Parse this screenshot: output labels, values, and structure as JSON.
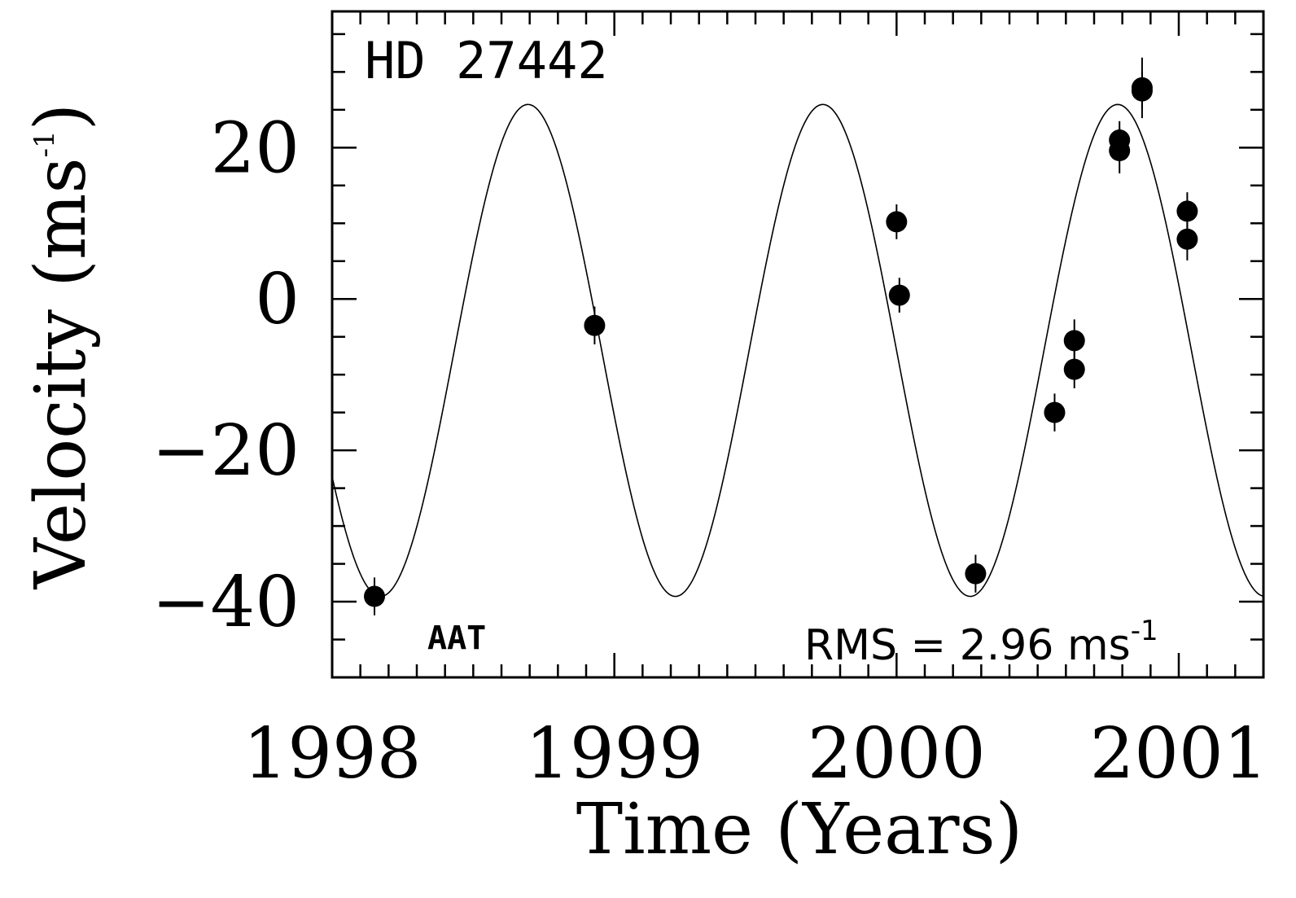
{
  "chart_data": {
    "type": "scatter",
    "xlabel": "Time (Years)",
    "ylabel_main": "Velocity (ms",
    "ylabel_sup": "-1",
    "ylabel_close": ")",
    "xlim": [
      1998.0,
      2001.3
    ],
    "ylim": [
      -50,
      38
    ],
    "x_ticks": [
      1998,
      1999,
      2000,
      2001
    ],
    "x_tick_labels": [
      "1998",
      "1999",
      "2000",
      "2001"
    ],
    "y_ticks": [
      20,
      0,
      -20,
      -40
    ],
    "y_tick_labels": [
      "20",
      "0",
      "−20",
      "−40"
    ],
    "annotations": {
      "star": "HD 27442",
      "telescope": "AAT",
      "rms_main": "RMS = 2.96 ms",
      "rms_sup": "-1"
    },
    "fit": {
      "period_years": 1.0448,
      "semi_amplitude": 32.5,
      "offset": -6.8,
      "peak_time": 1998.694
    },
    "series": [
      {
        "points": [
          {
            "x": 1998.15,
            "y": -39.3,
            "err": 2.5
          },
          {
            "x": 1998.93,
            "y": -3.5,
            "err": 2.5
          },
          {
            "x": 2000.0,
            "y": 10.2,
            "err": 2.3
          },
          {
            "x": 2000.01,
            "y": 0.5,
            "err": 2.3
          },
          {
            "x": 2000.28,
            "y": -36.3,
            "err": 2.5
          },
          {
            "x": 2000.56,
            "y": -15.0,
            "err": 2.5
          },
          {
            "x": 2000.63,
            "y": -5.5,
            "err": 2.8
          },
          {
            "x": 2000.63,
            "y": -9.3,
            "err": 2.5
          },
          {
            "x": 2000.79,
            "y": 21.0,
            "err": 2.5
          },
          {
            "x": 2000.79,
            "y": 19.6,
            "err": 3.0
          },
          {
            "x": 2000.87,
            "y": 27.9,
            "err": 4.0
          },
          {
            "x": 2000.87,
            "y": 27.5,
            "err": 2.5
          },
          {
            "x": 2001.03,
            "y": 11.6,
            "err": 2.5
          },
          {
            "x": 2001.03,
            "y": 7.9,
            "err": 2.8
          }
        ]
      }
    ]
  }
}
